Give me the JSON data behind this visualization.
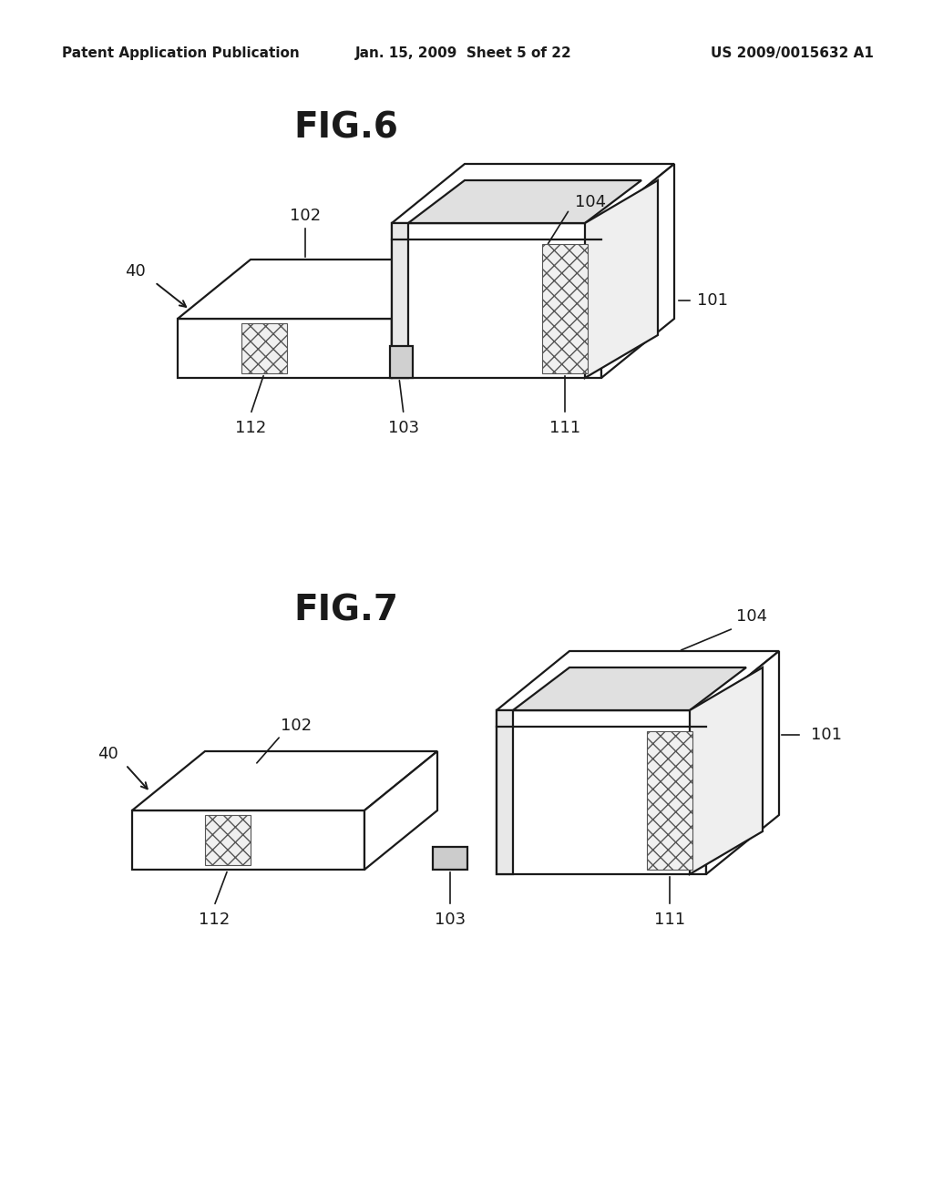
{
  "header_left": "Patent Application Publication",
  "header_mid": "Jan. 15, 2009  Sheet 5 of 22",
  "header_right": "US 2009/0015632 A1",
  "fig6_title": "FIG.6",
  "fig7_title": "FIG.7",
  "bg_color": "#ffffff",
  "line_color": "#1a1a1a",
  "lw": 1.6
}
